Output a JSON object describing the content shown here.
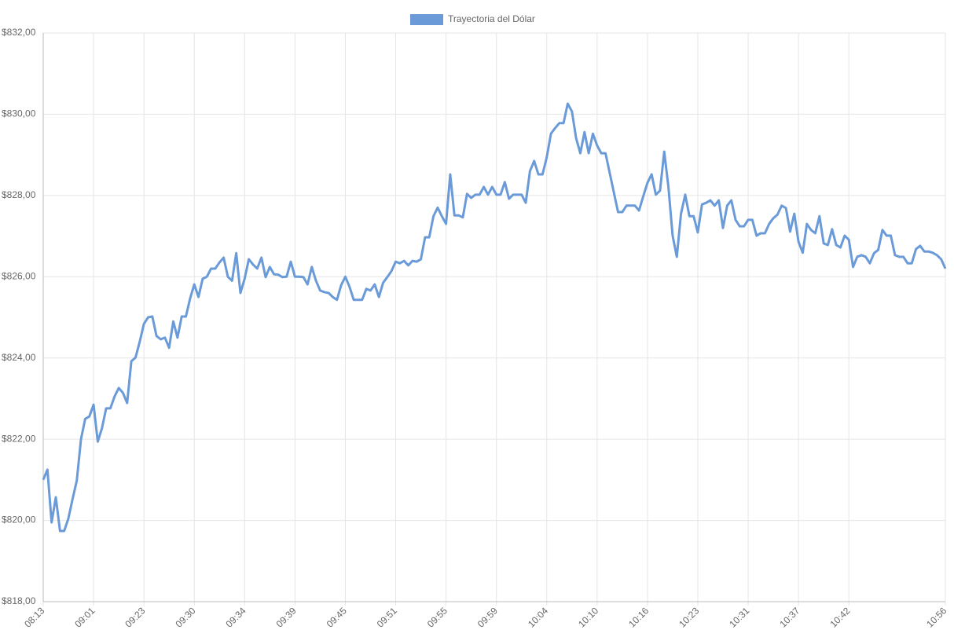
{
  "chart_data": {
    "type": "line",
    "categories": [
      "08:13",
      null,
      null,
      null,
      null,
      null,
      null,
      null,
      null,
      null,
      null,
      null,
      "09:01",
      null,
      null,
      null,
      null,
      null,
      null,
      null,
      null,
      null,
      null,
      null,
      "09:23",
      null,
      null,
      null,
      null,
      null,
      null,
      null,
      null,
      null,
      null,
      null,
      "09:30",
      null,
      null,
      null,
      null,
      null,
      null,
      null,
      null,
      null,
      null,
      null,
      "09:34",
      null,
      null,
      null,
      null,
      null,
      null,
      null,
      null,
      null,
      null,
      null,
      "09:39",
      null,
      null,
      null,
      null,
      null,
      null,
      null,
      null,
      null,
      null,
      null,
      "09:45",
      null,
      null,
      null,
      null,
      null,
      null,
      null,
      null,
      null,
      null,
      null,
      "09:51",
      null,
      null,
      null,
      null,
      null,
      null,
      null,
      null,
      null,
      null,
      null,
      "09:55",
      null,
      null,
      null,
      null,
      null,
      null,
      null,
      null,
      null,
      null,
      null,
      "09:59",
      null,
      null,
      null,
      null,
      null,
      null,
      null,
      null,
      null,
      null,
      null,
      "10:04",
      null,
      null,
      null,
      null,
      null,
      null,
      null,
      null,
      null,
      null,
      null,
      "10:10",
      null,
      null,
      null,
      null,
      null,
      null,
      null,
      null,
      null,
      null,
      null,
      "10:16",
      null,
      null,
      null,
      null,
      null,
      null,
      null,
      null,
      null,
      null,
      null,
      "10:23",
      null,
      null,
      null,
      null,
      null,
      null,
      null,
      null,
      null,
      null,
      null,
      "10:31",
      null,
      null,
      null,
      null,
      null,
      null,
      null,
      null,
      null,
      null,
      null,
      "10:37",
      null,
      null,
      null,
      null,
      null,
      null,
      null,
      null,
      null,
      null,
      null,
      "10:42",
      null,
      null,
      null,
      null,
      null,
      null,
      null,
      null,
      null,
      null,
      null,
      null,
      null,
      null,
      null,
      null,
      null,
      null,
      null,
      null,
      null,
      null,
      "10:56"
    ],
    "series": [
      {
        "name": "Trayectoria del Dólar",
        "color": "#6a9ad8",
        "values": [
          821.0,
          821.25,
          819.95,
          820.57,
          819.74,
          819.74,
          820.05,
          820.53,
          820.98,
          822.0,
          822.5,
          822.56,
          822.85,
          821.94,
          822.27,
          822.76,
          822.76,
          823.05,
          823.26,
          823.14,
          822.89,
          823.92,
          824.01,
          824.4,
          824.84,
          825.0,
          825.02,
          824.54,
          824.46,
          824.5,
          824.25,
          824.9,
          824.5,
          825.02,
          825.02,
          825.46,
          825.81,
          825.5,
          825.95,
          826.0,
          826.2,
          826.2,
          826.35,
          826.47,
          826.0,
          825.9,
          826.58,
          825.6,
          825.95,
          826.43,
          826.3,
          826.2,
          826.47,
          825.99,
          826.24,
          826.06,
          826.05,
          825.99,
          826.0,
          826.37,
          826.0,
          826.0,
          825.99,
          825.81,
          826.24,
          825.9,
          825.66,
          825.62,
          825.6,
          825.5,
          825.43,
          825.79,
          826.0,
          825.75,
          825.43,
          825.43,
          825.43,
          825.7,
          825.66,
          825.81,
          825.5,
          825.85,
          825.99,
          826.14,
          826.37,
          826.33,
          826.39,
          826.28,
          826.39,
          826.37,
          826.43,
          826.97,
          826.97,
          827.49,
          827.7,
          827.49,
          827.3,
          828.52,
          827.51,
          827.51,
          827.46,
          828.04,
          827.94,
          828.02,
          828.02,
          828.21,
          828.02,
          828.21,
          828.02,
          828.02,
          828.33,
          827.92,
          828.02,
          828.02,
          828.02,
          827.82,
          828.6,
          828.85,
          828.52,
          828.52,
          828.94,
          829.52,
          829.66,
          829.78,
          829.78,
          830.26,
          830.07,
          829.41,
          829.04,
          829.56,
          829.04,
          829.52,
          829.23,
          829.04,
          829.04,
          828.56,
          828.07,
          827.59,
          827.59,
          827.75,
          827.75,
          827.75,
          827.63,
          827.98,
          828.31,
          828.52,
          828.02,
          828.12,
          829.08,
          828.21,
          827.01,
          826.49,
          827.55,
          828.02,
          827.49,
          827.49,
          827.09,
          827.78,
          827.82,
          827.88,
          827.75,
          827.88,
          827.2,
          827.75,
          827.88,
          827.4,
          827.24,
          827.24,
          827.4,
          827.4,
          827.01,
          827.07,
          827.07,
          827.3,
          827.44,
          827.53,
          827.75,
          827.69,
          827.11,
          827.55,
          826.86,
          826.59,
          827.3,
          827.15,
          827.07,
          827.49,
          826.82,
          826.78,
          827.17,
          826.78,
          826.72,
          827.01,
          826.91,
          826.24,
          826.49,
          826.53,
          826.49,
          826.33,
          826.58,
          826.66,
          827.15,
          827.01,
          827.01,
          826.53,
          826.49,
          826.49,
          826.33,
          826.33,
          826.68,
          826.76,
          826.62,
          826.62,
          826.59,
          826.53,
          826.43,
          826.2
        ]
      }
    ],
    "ylim": [
      818,
      832
    ],
    "yticks": [
      {
        "value": 818,
        "label": "$818,00"
      },
      {
        "value": 820,
        "label": "$820,00"
      },
      {
        "value": 822,
        "label": "$822,00"
      },
      {
        "value": 824,
        "label": "$824,00"
      },
      {
        "value": 826,
        "label": "$826,00"
      },
      {
        "value": 828,
        "label": "$828,00"
      },
      {
        "value": 830,
        "label": "$830,00"
      },
      {
        "value": 832,
        "label": "$832,00"
      }
    ],
    "grid": true,
    "legend": "top"
  }
}
